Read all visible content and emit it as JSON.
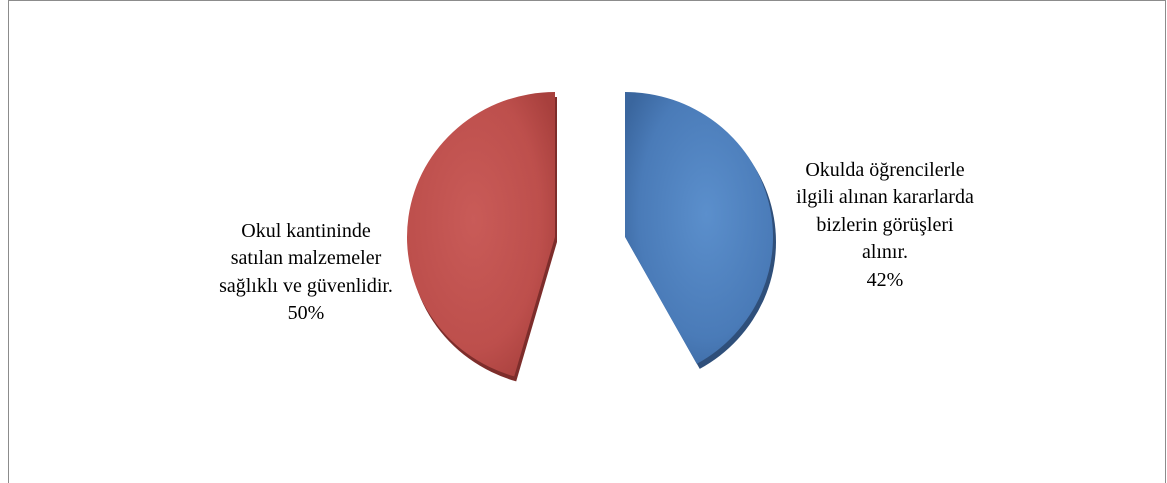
{
  "chart_data": {
    "type": "pie",
    "slices": [
      {
        "label_lines": [
          "Okulda öğrencilerle",
          "ilgili alınan kararlarda",
          "bizlerin görüşleri",
          "alınır."
        ],
        "percent_label": "42%",
        "value": 42,
        "color": "#4F81BD"
      },
      {
        "label_lines": [
          "Okul kantininde",
          "satılan malzemeler",
          "sağlıklı ve güvenlidir."
        ],
        "percent_label": "50%",
        "value": 50,
        "color": "#C0504D"
      }
    ]
  }
}
